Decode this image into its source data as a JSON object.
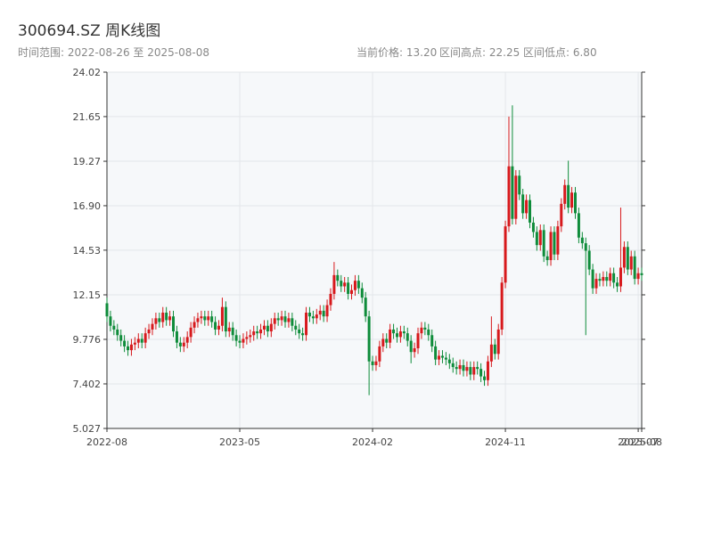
{
  "chart_data": {
    "type": "candlestick",
    "title": "300694.SZ 周K线图",
    "subtitle": "时间范围: 2022-08-26 至 2025-08-08",
    "info": [
      "当前价格: 13.20",
      "区间高点: 22.25",
      "区间低点: 6.80"
    ],
    "up_color": "#d7191c",
    "down_color": "#0e8c3a",
    "grid": true,
    "ylim": [
      5.027,
      24.02
    ],
    "yticks": [
      5.027,
      7.402,
      9.776,
      12.15,
      14.53,
      {
        "value": 16.9,
        "label": "16.90"
      },
      19.27,
      21.65,
      24.02
    ],
    "xlim": [
      0,
      153
    ],
    "xticks": [
      {
        "value": 0,
        "label": "2022-08"
      },
      {
        "value": 38,
        "label": "2023-05"
      },
      {
        "value": 76,
        "label": "2024-02"
      },
      {
        "value": 114,
        "label": "2024-11"
      },
      {
        "value": 152,
        "label": "2025-07"
      },
      {
        "value": 153,
        "label": "2025-08"
      }
    ],
    "open": [
      11.7,
      11.0,
      10.5,
      10.3,
      10.0,
      9.7,
      9.4,
      9.2,
      9.5,
      9.6,
      9.8,
      9.6,
      10.1,
      10.3,
      10.6,
      10.9,
      10.7,
      11.2,
      10.8,
      11.0,
      10.2,
      9.6,
      9.4,
      9.6,
      9.9,
      10.4,
      10.7,
      10.9,
      11.0,
      10.8,
      11.0,
      10.7,
      10.3,
      10.5,
      11.5,
      10.2,
      10.4,
      10.0,
      9.7,
      9.6,
      9.8,
      9.9,
      10.0,
      10.2,
      10.1,
      10.3,
      10.5,
      10.2,
      10.6,
      10.9,
      10.8,
      11.0,
      10.7,
      10.9,
      10.5,
      10.3,
      10.1,
      10.0,
      11.2,
      11.0,
      10.9,
      11.1,
      11.3,
      11.0,
      11.6,
      12.2,
      13.2,
      12.9,
      12.6,
      12.8,
      12.2,
      12.4,
      12.9,
      12.5,
      12.0,
      11.0,
      8.6,
      8.4,
      8.6,
      9.4,
      9.8,
      9.6,
      10.3,
      10.1,
      9.9,
      10.2,
      10.1,
      9.7,
      9.1,
      9.3,
      10.1,
      10.4,
      10.3,
      10.0,
      9.4,
      8.7,
      8.9,
      8.8,
      8.7,
      8.5,
      8.3,
      8.2,
      8.4,
      8.1,
      8.3,
      7.9,
      8.3,
      8.2,
      7.8,
      7.6,
      8.6,
      9.5,
      9.0,
      10.3,
      12.8,
      15.8,
      19.0,
      16.2,
      18.5,
      17.5,
      16.5,
      17.2,
      16.0,
      15.5,
      14.8,
      15.6,
      14.2,
      14.0,
      15.5,
      14.3,
      15.8,
      17.0,
      18.0,
      16.8,
      17.6,
      16.5,
      15.2,
      14.9,
      14.5,
      13.5,
      12.5,
      13.0,
      12.9,
      13.1,
      12.9,
      13.3,
      12.8,
      12.6,
      13.6,
      14.7,
      13.5,
      14.2,
      13.0,
      13.3
    ],
    "high": [
      12.0,
      11.3,
      10.8,
      10.6,
      10.3,
      10.0,
      9.7,
      9.8,
      9.9,
      10.1,
      10.1,
      10.4,
      10.6,
      10.9,
      11.2,
      11.2,
      11.5,
      11.5,
      11.3,
      11.3,
      10.5,
      9.9,
      9.9,
      10.2,
      10.7,
      11.0,
      11.2,
      11.3,
      11.3,
      11.3,
      11.3,
      11.0,
      10.8,
      12.0,
      11.8,
      10.7,
      10.7,
      10.3,
      10.0,
      10.1,
      10.2,
      10.3,
      10.5,
      10.5,
      10.6,
      10.8,
      10.8,
      10.9,
      11.2,
      11.2,
      11.3,
      11.3,
      11.2,
      11.2,
      10.8,
      10.6,
      10.4,
      11.5,
      11.5,
      11.3,
      11.4,
      11.6,
      11.6,
      11.9,
      12.5,
      13.9,
      13.5,
      13.2,
      13.1,
      13.1,
      12.7,
      13.2,
      13.2,
      12.8,
      12.3,
      11.3,
      8.9,
      8.9,
      9.7,
      10.1,
      10.1,
      10.6,
      10.6,
      10.4,
      10.5,
      10.5,
      10.4,
      10.0,
      9.6,
      10.4,
      10.7,
      10.7,
      10.6,
      10.3,
      9.7,
      9.2,
      9.2,
      9.1,
      9.0,
      8.8,
      8.6,
      8.7,
      8.7,
      8.6,
      8.6,
      8.6,
      8.6,
      8.5,
      8.1,
      8.9,
      11.0,
      9.8,
      10.6,
      13.1,
      16.1,
      21.65,
      22.25,
      18.8,
      18.8,
      17.8,
      17.5,
      17.5,
      16.3,
      15.8,
      15.9,
      15.9,
      14.5,
      15.8,
      15.8,
      16.1,
      17.3,
      18.3,
      19.3,
      17.9,
      17.9,
      16.8,
      15.5,
      15.2,
      14.8,
      13.8,
      13.3,
      13.3,
      13.4,
      13.4,
      13.6,
      13.6,
      13.1,
      16.8,
      15.0,
      15.0,
      14.5,
      14.5,
      13.6,
      13.6
    ],
    "low": [
      10.7,
      10.2,
      10.0,
      9.7,
      9.4,
      9.1,
      8.9,
      8.9,
      9.2,
      9.3,
      9.3,
      9.3,
      9.8,
      10.0,
      10.3,
      10.4,
      10.4,
      10.5,
      10.5,
      9.9,
      9.3,
      9.1,
      9.1,
      9.3,
      9.6,
      10.1,
      10.4,
      10.6,
      10.5,
      10.5,
      10.4,
      10.0,
      10.0,
      10.2,
      9.9,
      9.9,
      9.7,
      9.4,
      9.3,
      9.3,
      9.5,
      9.6,
      9.7,
      9.8,
      9.8,
      10.0,
      9.9,
      9.9,
      10.3,
      10.5,
      10.5,
      10.4,
      10.4,
      10.2,
      10.0,
      9.8,
      9.7,
      9.7,
      10.7,
      10.6,
      10.6,
      10.8,
      10.7,
      10.7,
      11.3,
      11.9,
      12.6,
      12.3,
      12.3,
      11.9,
      11.9,
      12.1,
      12.2,
      11.7,
      10.7,
      6.8,
      8.1,
      8.1,
      8.3,
      9.1,
      9.3,
      9.3,
      9.8,
      9.6,
      9.6,
      9.8,
      9.4,
      8.5,
      8.8,
      9.0,
      9.8,
      10.0,
      9.7,
      9.1,
      8.4,
      8.4,
      8.5,
      8.4,
      8.2,
      8.0,
      7.9,
      7.9,
      7.8,
      7.8,
      7.6,
      7.6,
      7.9,
      7.5,
      7.3,
      7.3,
      8.3,
      8.7,
      8.7,
      10.0,
      12.5,
      15.5,
      15.9,
      15.9,
      17.2,
      16.2,
      16.2,
      15.7,
      15.2,
      14.5,
      14.5,
      13.9,
      13.7,
      13.7,
      14.0,
      14.0,
      15.5,
      16.7,
      16.5,
      16.5,
      16.2,
      14.9,
      14.6,
      10.0,
      13.2,
      12.2,
      12.2,
      12.6,
      12.6,
      12.6,
      12.6,
      12.5,
      12.3,
      12.3,
      13.3,
      13.2,
      13.2,
      12.7,
      12.7,
      12.9
    ],
    "close": [
      11.0,
      10.5,
      10.3,
      10.0,
      9.7,
      9.4,
      9.2,
      9.5,
      9.6,
      9.8,
      9.6,
      10.1,
      10.3,
      10.6,
      10.9,
      10.7,
      11.2,
      10.8,
      11.0,
      10.2,
      9.6,
      9.4,
      9.6,
      9.9,
      10.4,
      10.7,
      10.9,
      11.0,
      10.8,
      11.0,
      10.7,
      10.3,
      10.5,
      11.5,
      10.2,
      10.4,
      10.0,
      9.7,
      9.6,
      9.8,
      9.9,
      10.0,
      10.2,
      10.1,
      10.3,
      10.5,
      10.2,
      10.6,
      10.9,
      10.8,
      11.0,
      10.7,
      10.9,
      10.5,
      10.3,
      10.1,
      10.0,
      11.2,
      11.0,
      10.9,
      11.1,
      11.3,
      11.0,
      11.6,
      12.2,
      13.2,
      12.9,
      12.6,
      12.8,
      12.2,
      12.4,
      12.9,
      12.5,
      12.0,
      11.0,
      8.6,
      8.4,
      8.6,
      9.4,
      9.8,
      9.6,
      10.3,
      10.1,
      9.9,
      10.2,
      10.1,
      9.7,
      9.1,
      9.3,
      10.1,
      10.4,
      10.3,
      10.0,
      9.4,
      8.7,
      8.9,
      8.8,
      8.7,
      8.5,
      8.3,
      8.2,
      8.4,
      8.1,
      8.3,
      7.9,
      8.3,
      8.2,
      7.8,
      7.6,
      8.6,
      9.5,
      9.0,
      10.3,
      12.8,
      15.8,
      19.0,
      16.2,
      18.5,
      17.5,
      16.5,
      17.2,
      16.0,
      15.5,
      14.8,
      15.6,
      14.2,
      14.0,
      15.5,
      14.3,
      15.8,
      17.0,
      18.0,
      16.8,
      17.6,
      16.5,
      15.2,
      14.9,
      14.5,
      13.5,
      12.5,
      13.0,
      12.9,
      13.1,
      12.9,
      13.3,
      12.8,
      12.6,
      13.6,
      14.7,
      13.5,
      14.2,
      13.0,
      13.3,
      13.2
    ]
  }
}
